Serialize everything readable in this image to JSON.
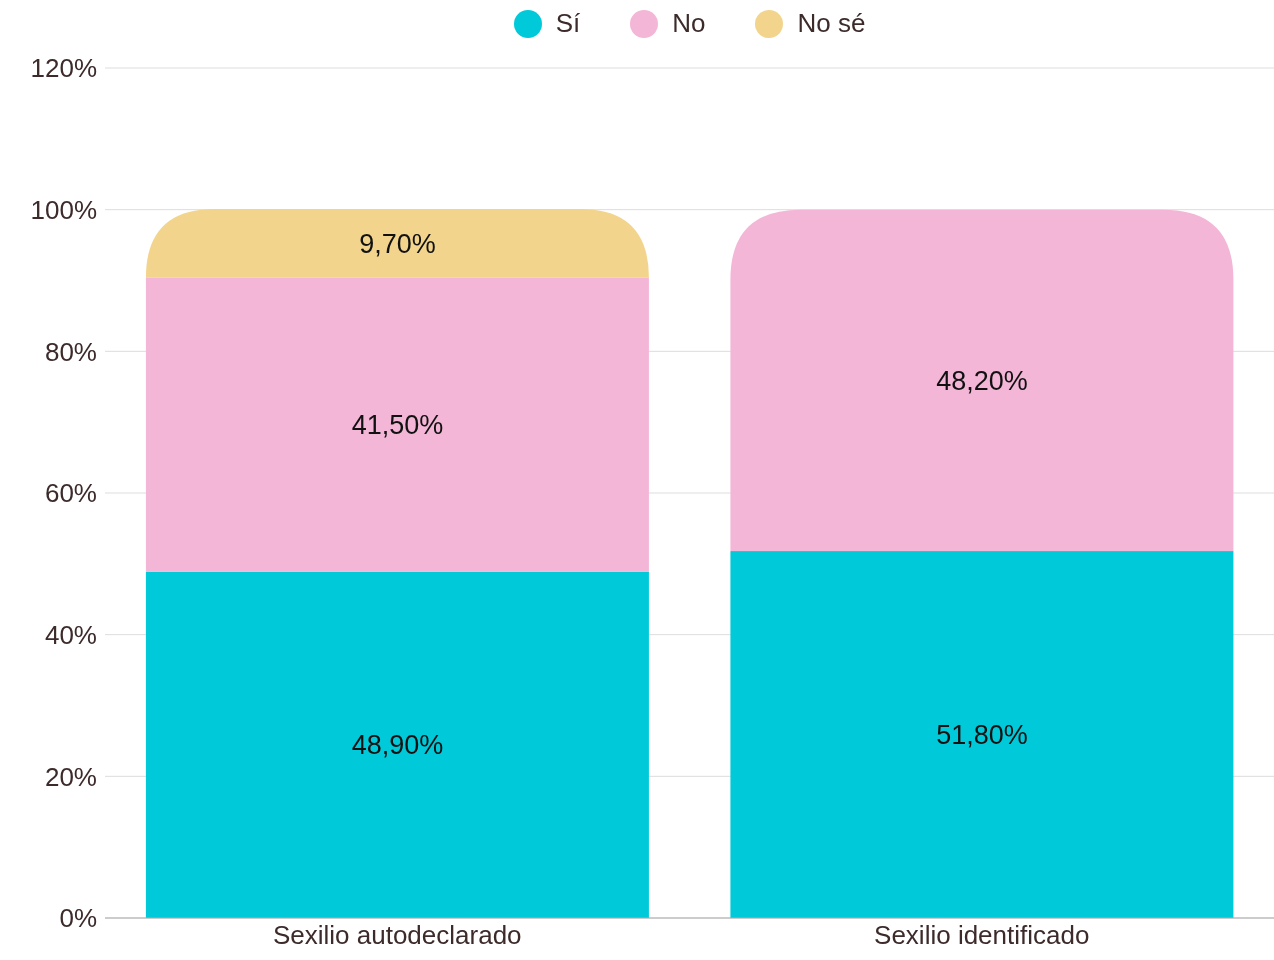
{
  "chart_data": {
    "type": "bar",
    "stacked": true,
    "categories": [
      "Sexilio autodeclarado",
      "Sexilio identificado"
    ],
    "series": [
      {
        "name": "Sí",
        "color": "#00cad9",
        "values": [
          48.9,
          51.8
        ],
        "value_labels": [
          "48,90%",
          "51,80%"
        ]
      },
      {
        "name": "No",
        "color": "#f4b6d6",
        "values": [
          41.5,
          48.2
        ],
        "value_labels": [
          "41,50%",
          "48,20%"
        ]
      },
      {
        "name": "No sé",
        "color": "#f2d48c",
        "values": [
          9.7,
          null
        ],
        "value_labels": [
          "9,70%",
          null
        ]
      }
    ],
    "ylim": [
      0,
      120
    ],
    "yticks": [
      {
        "value": 0,
        "label": "0%"
      },
      {
        "value": 20,
        "label": "20%"
      },
      {
        "value": 40,
        "label": "40%"
      },
      {
        "value": 60,
        "label": "60%"
      },
      {
        "value": 80,
        "label": "80%"
      },
      {
        "value": 100,
        "label": "100%"
      },
      {
        "value": 120,
        "label": "120%"
      }
    ],
    "grid": "y",
    "legend": "top"
  }
}
